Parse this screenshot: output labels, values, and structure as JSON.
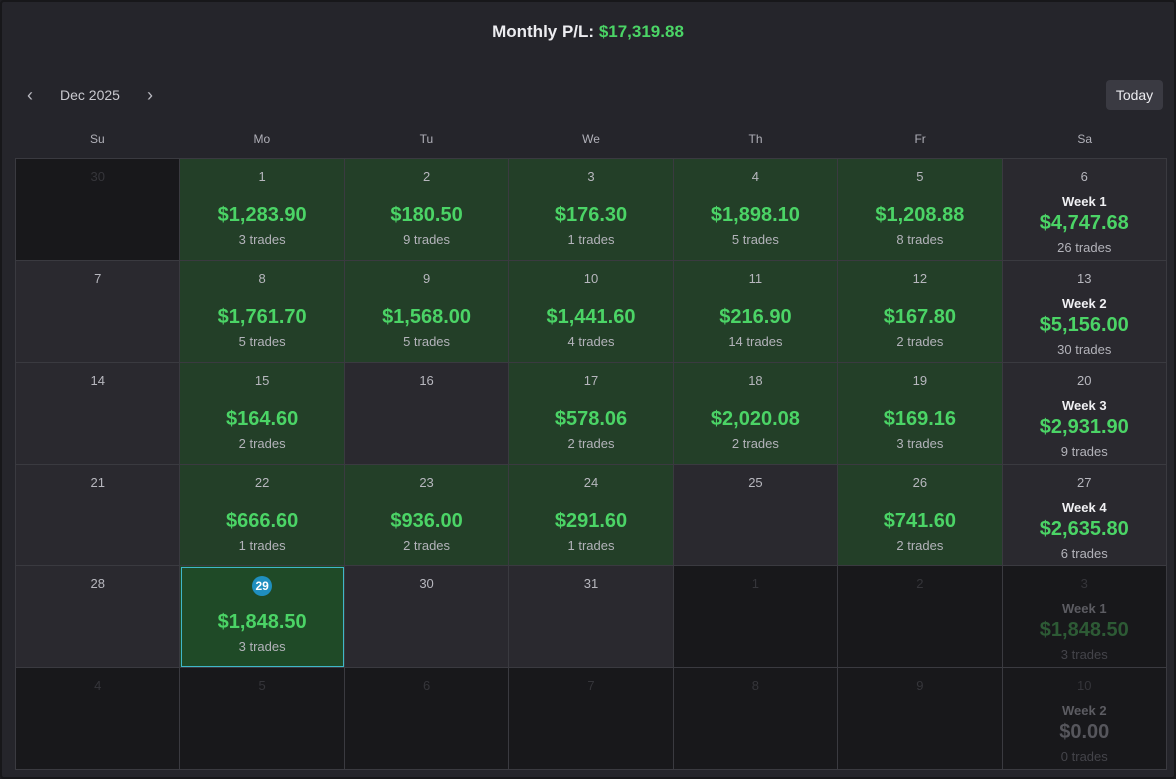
{
  "header": {
    "label": "Monthly P/L:",
    "value": "$17,319.88"
  },
  "nav": {
    "prev_icon": "‹",
    "month": "Dec 2025",
    "next_icon": "›",
    "today_label": "Today"
  },
  "weekdays": [
    "Su",
    "Mo",
    "Tu",
    "We",
    "Th",
    "Fr",
    "Sa"
  ],
  "weeks": [
    {
      "days": [
        {
          "day": "30",
          "other": true
        },
        {
          "day": "1",
          "pnl": "$1,283.90",
          "trades": "3 trades"
        },
        {
          "day": "2",
          "pnl": "$180.50",
          "trades": "9 trades"
        },
        {
          "day": "3",
          "pnl": "$176.30",
          "trades": "1 trades"
        },
        {
          "day": "4",
          "pnl": "$1,898.10",
          "trades": "5 trades"
        },
        {
          "day": "5",
          "pnl": "$1,208.88",
          "trades": "8 trades"
        },
        {
          "day": "6",
          "summary": {
            "label": "Week 1",
            "pnl": "$4,747.68",
            "trades": "26 trades"
          }
        }
      ]
    },
    {
      "days": [
        {
          "day": "7"
        },
        {
          "day": "8",
          "pnl": "$1,761.70",
          "trades": "5 trades"
        },
        {
          "day": "9",
          "pnl": "$1,568.00",
          "trades": "5 trades"
        },
        {
          "day": "10",
          "pnl": "$1,441.60",
          "trades": "4 trades"
        },
        {
          "day": "11",
          "pnl": "$216.90",
          "trades": "14 trades"
        },
        {
          "day": "12",
          "pnl": "$167.80",
          "trades": "2 trades"
        },
        {
          "day": "13",
          "summary": {
            "label": "Week 2",
            "pnl": "$5,156.00",
            "trades": "30 trades"
          }
        }
      ]
    },
    {
      "days": [
        {
          "day": "14"
        },
        {
          "day": "15",
          "pnl": "$164.60",
          "trades": "2 trades"
        },
        {
          "day": "16"
        },
        {
          "day": "17",
          "pnl": "$578.06",
          "trades": "2 trades"
        },
        {
          "day": "18",
          "pnl": "$2,020.08",
          "trades": "2 trades"
        },
        {
          "day": "19",
          "pnl": "$169.16",
          "trades": "3 trades"
        },
        {
          "day": "20",
          "summary": {
            "label": "Week 3",
            "pnl": "$2,931.90",
            "trades": "9 trades"
          }
        }
      ]
    },
    {
      "days": [
        {
          "day": "21"
        },
        {
          "day": "22",
          "pnl": "$666.60",
          "trades": "1 trades"
        },
        {
          "day": "23",
          "pnl": "$936.00",
          "trades": "2 trades"
        },
        {
          "day": "24",
          "pnl": "$291.60",
          "trades": "1 trades"
        },
        {
          "day": "25"
        },
        {
          "day": "26",
          "pnl": "$741.60",
          "trades": "2 trades"
        },
        {
          "day": "27",
          "summary": {
            "label": "Week 4",
            "pnl": "$2,635.80",
            "trades": "6 trades"
          }
        }
      ]
    },
    {
      "days": [
        {
          "day": "28"
        },
        {
          "day": "29",
          "pnl": "$1,848.50",
          "trades": "3 trades",
          "today": true
        },
        {
          "day": "30"
        },
        {
          "day": "31"
        },
        {
          "day": "1",
          "other": true
        },
        {
          "day": "2",
          "other": true
        },
        {
          "day": "3",
          "other": true,
          "summary": {
            "label": "Week 1",
            "pnl": "$1,848.50",
            "trades": "3 trades"
          }
        }
      ]
    },
    {
      "days": [
        {
          "day": "4",
          "other": true
        },
        {
          "day": "5",
          "other": true
        },
        {
          "day": "6",
          "other": true
        },
        {
          "day": "7",
          "other": true
        },
        {
          "day": "8",
          "other": true
        },
        {
          "day": "9",
          "other": true
        },
        {
          "day": "10",
          "other": true,
          "zero": true,
          "summary": {
            "label": "Week 2",
            "pnl": "$0.00",
            "trades": "0 trades"
          }
        }
      ]
    }
  ]
}
